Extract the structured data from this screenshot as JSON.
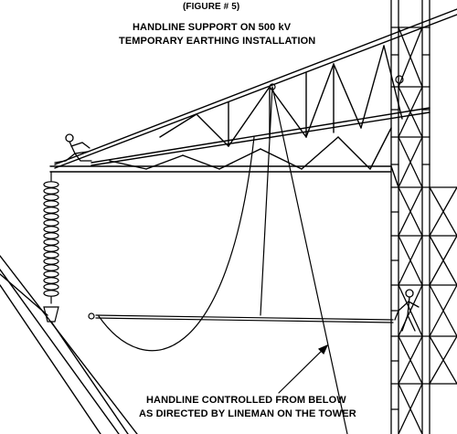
{
  "figure_number": "(FIGURE # 5)",
  "title": {
    "line1": "HANDLINE SUPPORT ON 500 kV",
    "line2": "TEMPORARY EARTHING INSTALLATION"
  },
  "caption": {
    "line1": "HANDLINE CONTROLLED FROM BELOW",
    "line2": "AS DIRECTED BY LINEMAN ON THE TOWER"
  }
}
